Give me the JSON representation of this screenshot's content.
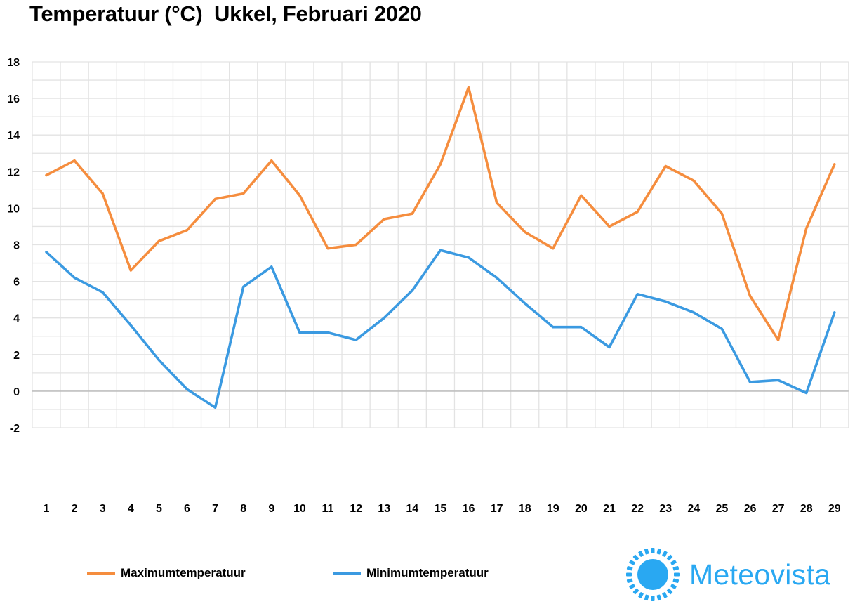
{
  "colors": {
    "max": "#F58D3E",
    "min": "#3B9AE1",
    "grid": "#E3E3E3",
    "zero_line": "#BFBFBF",
    "logo": "#29A8F2"
  },
  "logo": {
    "text": "Meteovista",
    "icon": "sun-icon"
  },
  "chart_data": {
    "type": "line",
    "title": "Temperatuur (°C)  Ukkel, Februari 2020",
    "xlabel": "",
    "ylabel": "",
    "x": [
      1,
      2,
      3,
      4,
      5,
      6,
      7,
      8,
      9,
      10,
      11,
      12,
      13,
      14,
      15,
      16,
      17,
      18,
      19,
      20,
      21,
      22,
      23,
      24,
      25,
      26,
      27,
      28,
      29
    ],
    "ylim": [
      -2,
      18
    ],
    "yticks": [
      -2,
      0,
      2,
      4,
      6,
      8,
      10,
      12,
      14,
      16,
      18
    ],
    "grid": true,
    "legend_position": "bottom-left",
    "series": [
      {
        "name": "Maximumtemperatuur",
        "color": "#F58D3E",
        "values": [
          11.8,
          12.6,
          10.8,
          6.6,
          8.2,
          8.8,
          10.5,
          10.8,
          12.6,
          10.7,
          7.8,
          8.0,
          9.4,
          9.7,
          12.4,
          16.6,
          10.3,
          8.7,
          7.8,
          10.7,
          9.0,
          9.8,
          12.3,
          11.5,
          9.7,
          5.2,
          2.8,
          8.9,
          12.4
        ]
      },
      {
        "name": "Minimumtemperatuur",
        "color": "#3B9AE1",
        "values": [
          7.6,
          6.2,
          5.4,
          3.6,
          1.7,
          0.1,
          -0.9,
          5.7,
          6.8,
          3.2,
          3.2,
          2.8,
          4.0,
          5.5,
          7.7,
          7.3,
          6.2,
          4.8,
          3.5,
          3.5,
          2.4,
          5.3,
          4.9,
          4.3,
          3.4,
          0.5,
          0.6,
          -0.1,
          4.3
        ]
      }
    ]
  }
}
